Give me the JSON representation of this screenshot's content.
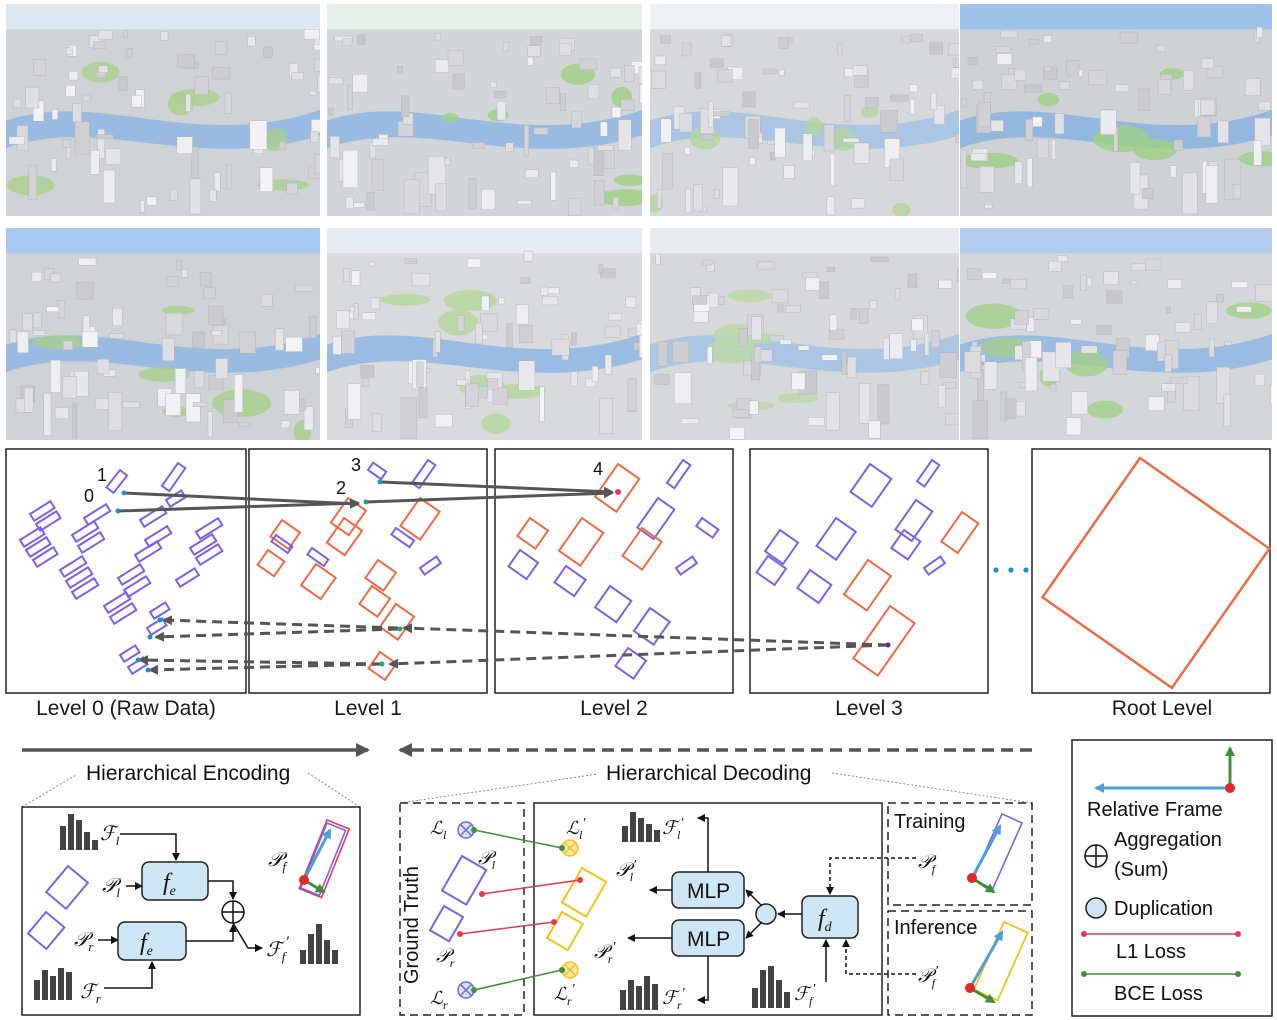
{
  "tiles": [
    {
      "name": "city-view-1",
      "sky": "#dfe8f0",
      "ground": "#cfd3d6",
      "water": "#8fb6e3",
      "green": "#a9cf8d"
    },
    {
      "name": "city-view-2",
      "sky": "#e6efe8",
      "ground": "#d3d6d8",
      "water": "#8fb6e3",
      "green": "#9fcf85"
    },
    {
      "name": "city-view-3",
      "sky": "#eef1f3",
      "ground": "#d6d8da",
      "water": "#a3c3e6",
      "green": "#b4d69b"
    },
    {
      "name": "city-view-4",
      "sky": "#9fc2ea",
      "ground": "#cfd2d5",
      "water": "#8ab3e2",
      "green": "#9dcf82"
    },
    {
      "name": "city-view-5",
      "sky": "#a9c8ee",
      "ground": "#cfd3d6",
      "water": "#8fb6e3",
      "green": "#a5cf8a"
    },
    {
      "name": "city-view-6",
      "sky": "#e5ebee",
      "ground": "#d8dadc",
      "water": "#8fb6e3",
      "green": "#b3d79b"
    },
    {
      "name": "city-view-7",
      "sky": "#e8ecef",
      "ground": "#d6d8da",
      "water": "#a3c3e6",
      "green": "#bcd9a5"
    },
    {
      "name": "city-view-8",
      "sky": "#b3cdee",
      "ground": "#d4d7d9",
      "water": "#8fb6e3",
      "green": "#a3d08b"
    }
  ],
  "levels": {
    "labels": [
      "Level 0 (Raw Data)",
      "Level 1",
      "Level 2",
      "Level 3",
      "Root Level"
    ],
    "point_labels": [
      "0",
      "1",
      "2",
      "3",
      "4"
    ],
    "ellipsis": "• • •"
  },
  "encoding": {
    "title": "Hierarchical Encoding",
    "f_l": "ℱ",
    "f_l_sub": "l",
    "p_l": "𝒫",
    "p_l_sub": "l",
    "p_r": "𝒫",
    "p_r_sub": "r",
    "f_r": "ℱ",
    "f_r_sub": "r",
    "fe": "f",
    "fe_sub": "e",
    "p_f": "𝒫",
    "p_f_sub": "f",
    "ff_prime": "ℱ",
    "ff_sub": "f",
    "prime": "′"
  },
  "decoding": {
    "title": "Hierarchical Decoding",
    "ground_truth": "Ground Truth",
    "l_l": "ℒ",
    "l_l_sub": "l",
    "l_r": "ℒ",
    "l_r_sub": "r",
    "p_l": "𝒫",
    "p_l_sub": "l",
    "p_r": "𝒫",
    "p_r_sub": "r",
    "mlp_top": "MLP",
    "mlp_bottom": "MLP",
    "fd": "f",
    "fd_sub": "d",
    "ff": "ℱ",
    "ff_sub": "f",
    "training": "Training",
    "inference": "Inference",
    "prime": "′"
  },
  "legend": {
    "relative_frame": "Relative Frame",
    "aggregation": "Aggregation",
    "aggregation_sub": "(Sum)",
    "duplication": "Duplication",
    "l1_loss": "L1 Loss",
    "bce_loss": "BCE Loss"
  },
  "colors": {
    "purple": "#7b62e8",
    "orange": "#f06a45",
    "yellow": "#f0c419",
    "red": "#e23a55",
    "green": "#3f8f3a",
    "blue": "#4aa0d8",
    "node": "#cfe6f5",
    "arrow": "#555555"
  }
}
